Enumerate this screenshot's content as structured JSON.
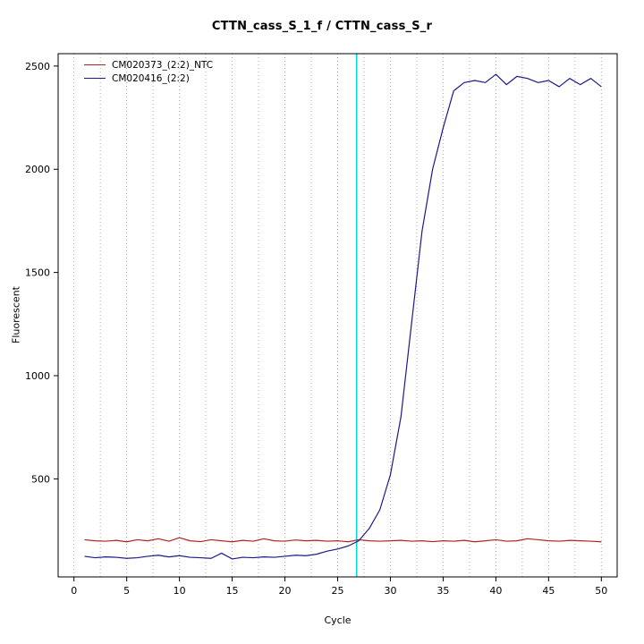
{
  "chart_data": {
    "type": "line",
    "title": "CTTN_cass_S_1_f / CTTN_cass_S_r",
    "xlabel": "Cycle",
    "ylabel": "Fluorescent",
    "xlim": [
      -1.5,
      51.5
    ],
    "ylim": [
      25,
      2560
    ],
    "xticks": [
      0,
      5,
      10,
      15,
      20,
      25,
      30,
      35,
      40,
      45,
      50
    ],
    "yticks": [
      500,
      1000,
      1500,
      2000,
      2500
    ],
    "x_start": 1,
    "grid": {
      "axis": "x",
      "start": 0,
      "end": 50,
      "step": 2.5,
      "color": "#ababab"
    },
    "threshold_line": {
      "x": 26.8,
      "color": "#00dcdc"
    },
    "legend_position": "top-left",
    "series": [
      {
        "name": "CM020373_(2:2)_NTC",
        "color": "#b22222",
        "values": [
          205,
          200,
          198,
          202,
          195,
          205,
          200,
          210,
          198,
          215,
          200,
          196,
          205,
          200,
          195,
          202,
          198,
          210,
          200,
          198,
          204,
          200,
          202,
          198,
          200,
          195,
          205,
          200,
          198,
          200,
          202,
          198,
          200,
          196,
          200,
          198,
          202,
          195,
          200,
          205,
          198,
          200,
          210,
          205,
          200,
          198,
          202,
          200,
          198,
          195
        ]
      },
      {
        "name": "CM020416_(2:2)",
        "color": "#1a1a8c",
        "values": [
          125,
          118,
          122,
          120,
          115,
          118,
          125,
          130,
          122,
          128,
          120,
          118,
          115,
          140,
          112,
          120,
          118,
          122,
          120,
          125,
          130,
          128,
          135,
          150,
          160,
          175,
          200,
          260,
          350,
          520,
          800,
          1250,
          1700,
          2000,
          2200,
          2380,
          2420,
          2430,
          2420,
          2460,
          2410,
          2450,
          2440,
          2420,
          2430,
          2400,
          2440,
          2410,
          2440,
          2400
        ]
      }
    ]
  }
}
